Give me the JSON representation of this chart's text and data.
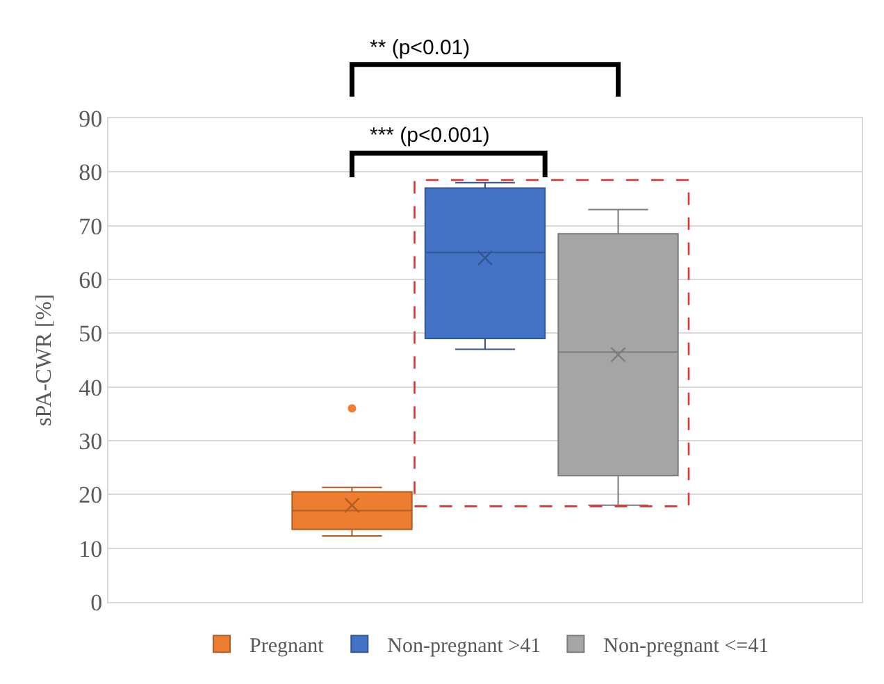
{
  "chart_data": {
    "type": "box",
    "ylabel": "sPA-CWR [%]",
    "categories": [
      null
    ],
    "series": [
      {
        "name": "Pregnant",
        "color": "#ed7d31",
        "boxes": [
          {
            "low": 12.3,
            "q1": 13.5,
            "median": 17,
            "q3": 20.5,
            "high": 21.3,
            "mean": 18,
            "outliers": [
              36
            ]
          }
        ]
      },
      {
        "name": "Non-pregnant >41",
        "color": "#4472c4",
        "boxes": [
          {
            "low": 47,
            "q1": 49,
            "median": 65,
            "q3": 77,
            "high": 78,
            "mean": 64
          }
        ]
      },
      {
        "name": "Non-pregnant <=41",
        "color": "#a5a5a5",
        "boxes": [
          {
            "low": 18,
            "q1": 23.5,
            "median": 46.5,
            "q3": 68.5,
            "high": 73,
            "mean": 46
          }
        ]
      }
    ],
    "ylim": [
      0,
      90
    ],
    "yticks": [
      0,
      10,
      20,
      30,
      40,
      50,
      60,
      70,
      80,
      90
    ],
    "grid": "y",
    "legend": "bottom",
    "tick_labels": "y",
    "annotations": [
      "*** (p<0.001)",
      "** (p<0.01)"
    ]
  }
}
